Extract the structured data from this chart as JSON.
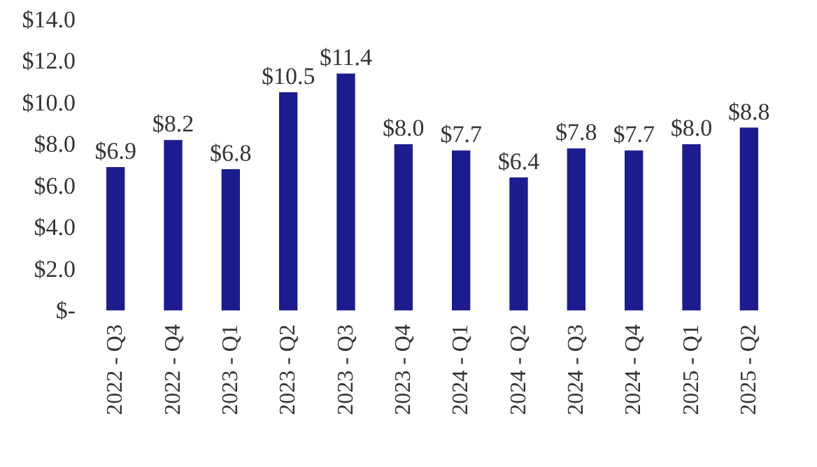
{
  "chart_data": {
    "type": "bar",
    "categories": [
      "2022 - Q3",
      "2022 - Q4",
      "2023 - Q1",
      "2023 - Q2",
      "2023 - Q3",
      "2023 - Q4",
      "2024 - Q1",
      "2024 - Q2",
      "2024 - Q3",
      "2024 - Q4",
      "2025 - Q1",
      "2025 - Q2"
    ],
    "values": [
      6.9,
      8.2,
      6.8,
      10.5,
      11.4,
      8.0,
      7.7,
      6.4,
      7.8,
      7.7,
      8.0,
      8.8
    ],
    "value_labels": [
      "$6.9",
      "$8.2",
      "$6.8",
      "$10.5",
      "$11.4",
      "$8.0",
      "$7.7",
      "$6.4",
      "$7.8",
      "$7.7",
      "$8.0",
      "$8.8"
    ],
    "color": "#1c1c8e",
    "ylim": [
      0,
      14
    ],
    "yticks": [
      {
        "value": 0,
        "label": "$-"
      },
      {
        "value": 2,
        "label": "$2.0"
      },
      {
        "value": 4,
        "label": "$4.0"
      },
      {
        "value": 6,
        "label": "$6.0"
      },
      {
        "value": 8,
        "label": "$8.0"
      },
      {
        "value": 10,
        "label": "$10.0"
      },
      {
        "value": 12,
        "label": "$12.0"
      },
      {
        "value": 14,
        "label": "$14.0"
      }
    ],
    "grid": false
  }
}
